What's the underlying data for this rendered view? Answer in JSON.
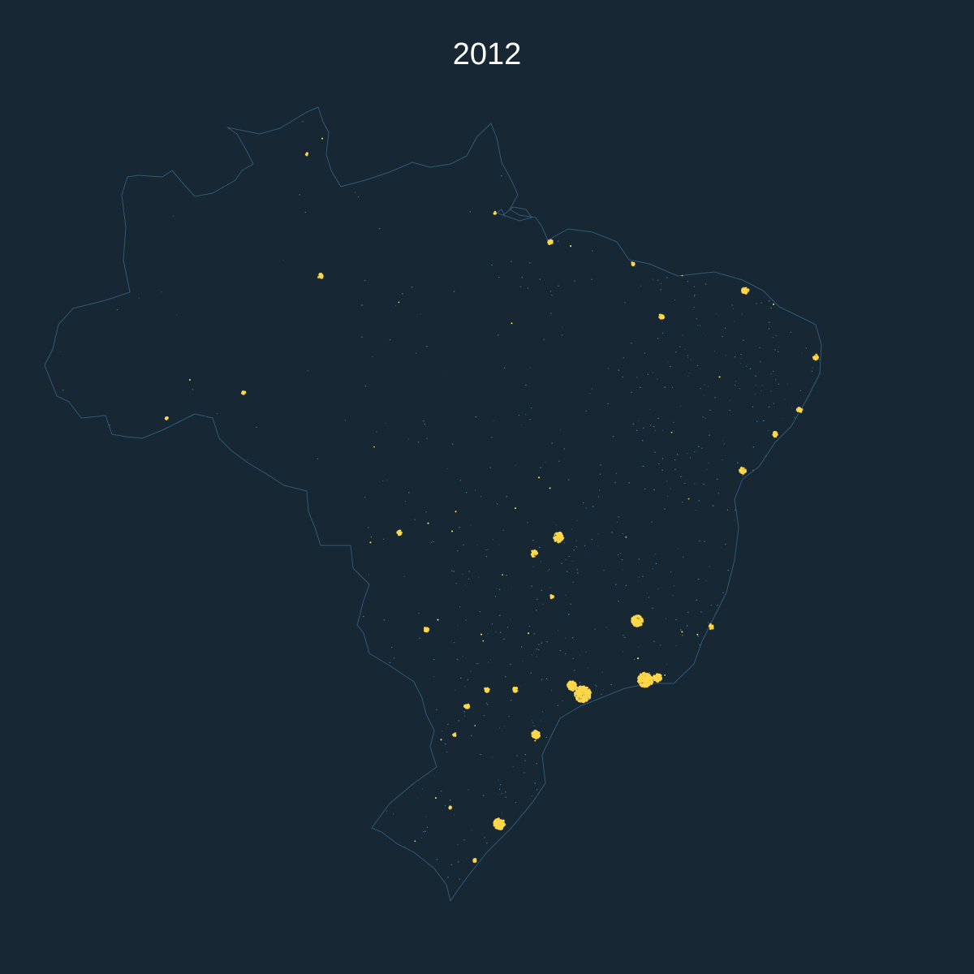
{
  "title": "2012",
  "colors": {
    "background": "#172733",
    "border": "#2f5a78",
    "dim_light": "#4a7fa3",
    "bright_light": "#ffd84a",
    "title_text": "#ffffff"
  }
}
